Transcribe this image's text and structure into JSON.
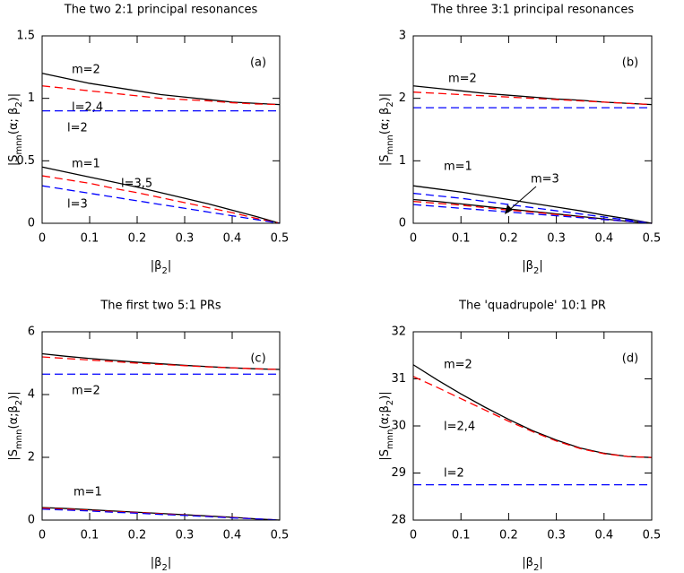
{
  "chart_data": [
    {
      "type": "line",
      "title": "The two 2:1 principal resonances",
      "panel_label": "(a)",
      "x_label": [
        "|β",
        "2",
        "|"
      ],
      "y_label": [
        "|S",
        "mnn",
        "(α; β",
        "2",
        ")|"
      ],
      "x": [
        0,
        0.05,
        0.1,
        0.15,
        0.2,
        0.25,
        0.3,
        0.35,
        0.4,
        0.45,
        0.5
      ],
      "xlim": [
        0,
        0.5
      ],
      "xticks": [
        0,
        0.1,
        0.2,
        0.3,
        0.4,
        0.5
      ],
      "ylim": [
        0,
        1.5
      ],
      "yticks": [
        0,
        0.5,
        1,
        1.5
      ],
      "series": [
        {
          "name": "m=2",
          "color": "#000000",
          "style": "solid",
          "values": [
            1.2,
            1.16,
            1.12,
            1.09,
            1.06,
            1.03,
            1.01,
            0.99,
            0.97,
            0.96,
            0.95
          ]
        },
        {
          "name": "l=2,4",
          "color": "#ff0000",
          "style": "dashed",
          "values": [
            1.1,
            1.08,
            1.06,
            1.04,
            1.02,
            1.0,
            0.99,
            0.98,
            0.965,
            0.955,
            0.95
          ]
        },
        {
          "name": "l=2",
          "color": "#0000ff",
          "style": "dashed",
          "values": [
            0.9,
            0.9,
            0.9,
            0.9,
            0.9,
            0.9,
            0.9,
            0.9,
            0.9,
            0.9,
            0.9
          ]
        },
        {
          "name": "m=1",
          "color": "#000000",
          "style": "solid",
          "values": [
            0.45,
            0.41,
            0.37,
            0.33,
            0.29,
            0.245,
            0.2,
            0.155,
            0.105,
            0.055,
            0
          ]
        },
        {
          "name": "l=3,5",
          "color": "#ff0000",
          "style": "dashed",
          "values": [
            0.38,
            0.35,
            0.32,
            0.28,
            0.245,
            0.205,
            0.165,
            0.125,
            0.085,
            0.04,
            0
          ]
        },
        {
          "name": "l=3",
          "color": "#0000ff",
          "style": "dashed",
          "values": [
            0.3,
            0.27,
            0.24,
            0.21,
            0.18,
            0.15,
            0.12,
            0.09,
            0.06,
            0.03,
            0
          ]
        }
      ]
    },
    {
      "type": "line",
      "title": "The three 3:1 principal resonances",
      "panel_label": "(b)",
      "x_label": [
        "|β",
        "2",
        "|"
      ],
      "y_label": [
        "|S",
        "mnn",
        "(α; β",
        "2",
        ")|"
      ],
      "x": [
        0,
        0.05,
        0.1,
        0.15,
        0.2,
        0.25,
        0.3,
        0.35,
        0.4,
        0.45,
        0.5
      ],
      "xlim": [
        0,
        0.5
      ],
      "xticks": [
        0,
        0.1,
        0.2,
        0.3,
        0.4,
        0.5
      ],
      "ylim": [
        0,
        3
      ],
      "yticks": [
        0,
        1,
        2,
        3
      ],
      "series": [
        {
          "name": "m=2",
          "color": "#000000",
          "style": "solid",
          "values": [
            2.2,
            2.16,
            2.12,
            2.08,
            2.05,
            2.02,
            1.99,
            1.97,
            1.94,
            1.92,
            1.9
          ]
        },
        {
          "color": "#ff0000",
          "style": "dashed",
          "values": [
            2.1,
            2.08,
            2.06,
            2.04,
            2.02,
            2.0,
            1.98,
            1.96,
            1.94,
            1.92,
            1.9
          ]
        },
        {
          "color": "#0000ff",
          "style": "dashed",
          "values": [
            1.85,
            1.85,
            1.85,
            1.85,
            1.85,
            1.85,
            1.85,
            1.85,
            1.85,
            1.85,
            1.85
          ]
        },
        {
          "name": "m=1",
          "color": "#000000",
          "style": "solid",
          "values": [
            0.6,
            0.55,
            0.5,
            0.44,
            0.38,
            0.32,
            0.26,
            0.2,
            0.13,
            0.07,
            0
          ]
        },
        {
          "color": "#0000ff",
          "style": "dashed",
          "values": [
            0.48,
            0.44,
            0.4,
            0.35,
            0.3,
            0.25,
            0.2,
            0.15,
            0.1,
            0.05,
            0
          ]
        },
        {
          "name": "m=3",
          "color": "#000000",
          "style": "solid",
          "values": [
            0.38,
            0.35,
            0.31,
            0.27,
            0.23,
            0.19,
            0.15,
            0.11,
            0.07,
            0.03,
            0
          ]
        },
        {
          "color": "#ff0000",
          "style": "dashed",
          "values": [
            0.35,
            0.32,
            0.29,
            0.25,
            0.21,
            0.18,
            0.14,
            0.1,
            0.06,
            0.03,
            0
          ]
        },
        {
          "color": "#0000ff",
          "style": "dashed",
          "values": [
            0.3,
            0.27,
            0.24,
            0.21,
            0.18,
            0.15,
            0.12,
            0.09,
            0.06,
            0.03,
            0
          ]
        }
      ]
    },
    {
      "type": "line",
      "title": "The first two 5:1 PRs",
      "panel_label": "(c)",
      "x_label": [
        "|β",
        "2",
        "|"
      ],
      "y_label": [
        "|S",
        "mnn",
        "(α;β",
        "2",
        ")|"
      ],
      "x": [
        0,
        0.05,
        0.1,
        0.15,
        0.2,
        0.25,
        0.3,
        0.35,
        0.4,
        0.45,
        0.5
      ],
      "xlim": [
        0,
        0.5
      ],
      "xticks": [
        0,
        0.1,
        0.2,
        0.3,
        0.4,
        0.5
      ],
      "ylim": [
        0,
        6
      ],
      "yticks": [
        0,
        2,
        4,
        6
      ],
      "series": [
        {
          "color": "#000000",
          "style": "solid",
          "values": [
            5.3,
            5.22,
            5.15,
            5.09,
            5.03,
            4.98,
            4.93,
            4.89,
            4.85,
            4.82,
            4.8
          ]
        },
        {
          "color": "#ff0000",
          "style": "dashed",
          "values": [
            5.2,
            5.15,
            5.1,
            5.05,
            5.0,
            4.96,
            4.92,
            4.88,
            4.85,
            4.82,
            4.8
          ]
        },
        {
          "name": "m=2",
          "color": "#0000ff",
          "style": "dashed",
          "values": [
            4.65,
            4.65,
            4.65,
            4.65,
            4.65,
            4.65,
            4.65,
            4.65,
            4.65,
            4.65,
            4.65
          ]
        },
        {
          "name": "m=1",
          "color": "#000000",
          "style": "solid",
          "values": [
            0.4,
            0.37,
            0.33,
            0.29,
            0.25,
            0.21,
            0.17,
            0.13,
            0.09,
            0.04,
            0
          ]
        },
        {
          "color": "#ff0000",
          "style": "dashed",
          "values": [
            0.38,
            0.35,
            0.31,
            0.27,
            0.24,
            0.2,
            0.16,
            0.12,
            0.08,
            0.04,
            0
          ]
        },
        {
          "color": "#0000ff",
          "style": "dashed",
          "values": [
            0.35,
            0.32,
            0.29,
            0.25,
            0.22,
            0.18,
            0.15,
            0.11,
            0.07,
            0.04,
            0
          ]
        }
      ]
    },
    {
      "type": "line",
      "title": "The 'quadrupole' 10:1 PR",
      "panel_label": "(d)",
      "x_label": [
        "|β",
        "2",
        "|"
      ],
      "y_label": [
        "|S",
        "mnn",
        "(α;β",
        "2",
        ")|"
      ],
      "x": [
        0,
        0.05,
        0.1,
        0.15,
        0.2,
        0.25,
        0.3,
        0.35,
        0.4,
        0.45,
        0.5
      ],
      "xlim": [
        0,
        0.5
      ],
      "xticks": [
        0,
        0.1,
        0.2,
        0.3,
        0.4,
        0.5
      ],
      "ylim": [
        28,
        32
      ],
      "yticks": [
        28,
        29,
        30,
        31,
        32
      ],
      "series": [
        {
          "name": "m=2",
          "color": "#000000",
          "style": "solid",
          "values": [
            31.3,
            30.98,
            30.68,
            30.4,
            30.14,
            29.9,
            29.7,
            29.53,
            29.42,
            29.35,
            29.33
          ]
        },
        {
          "name": "l=2,4",
          "color": "#ff0000",
          "style": "dashed",
          "values": [
            31.05,
            30.82,
            30.58,
            30.34,
            30.1,
            29.88,
            29.68,
            29.52,
            29.41,
            29.35,
            29.33
          ]
        },
        {
          "name": "l=2",
          "color": "#0000ff",
          "style": "dashed",
          "values": [
            28.75,
            28.75,
            28.75,
            28.75,
            28.75,
            28.75,
            28.75,
            28.75,
            28.75,
            28.75,
            28.75
          ]
        }
      ]
    }
  ]
}
